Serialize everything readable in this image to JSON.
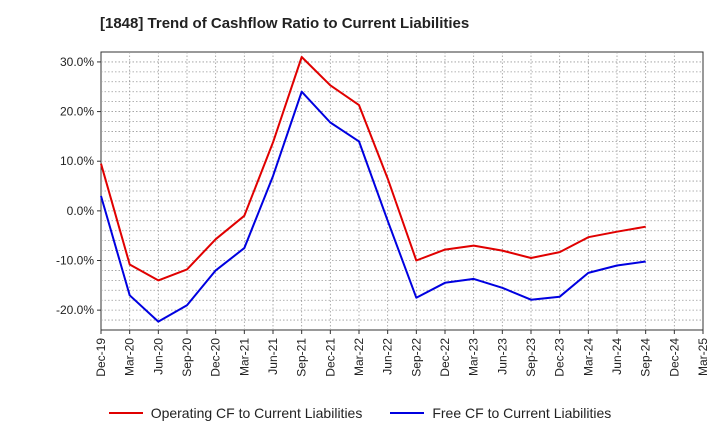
{
  "chart_data": {
    "type": "line",
    "title": "[1848]  Trend of Cashflow Ratio to Current Liabilities",
    "x": [
      "Dec-19",
      "Mar-20",
      "Jun-20",
      "Sep-20",
      "Dec-20",
      "Mar-21",
      "Jun-21",
      "Sep-21",
      "Dec-21",
      "Mar-22",
      "Jun-22",
      "Sep-22",
      "Dec-22",
      "Mar-23",
      "Jun-23",
      "Sep-23",
      "Dec-23",
      "Mar-24",
      "Jun-24",
      "Sep-24",
      "Dec-24",
      "Mar-25"
    ],
    "x_tick_labels": [
      "Dec-19",
      "Mar-20",
      "Jun-20",
      "Sep-20",
      "Dec-20",
      "Mar-21",
      "Jun-21",
      "Sep-21",
      "Dec-21",
      "Mar-22",
      "Jun-22",
      "Sep-22",
      "Dec-22",
      "Mar-23",
      "Jun-23",
      "Sep-23",
      "Dec-23",
      "Mar-24",
      "Jun-24",
      "Sep-24",
      "Dec-24",
      "Mar-25"
    ],
    "y_ticks": [
      30,
      20,
      10,
      0,
      -10,
      -20
    ],
    "y_tick_labels": [
      "30.0%",
      "20.0%",
      "10.0%",
      "0.0%",
      "-10.0%",
      "-20.0%"
    ],
    "ylim": [
      -24,
      32
    ],
    "grid": true,
    "legend_position": "bottom",
    "series": [
      {
        "name": "Operating CF to Current Liabilities",
        "color": "#e00000",
        "values": [
          9.5,
          -10.8,
          -14.0,
          -11.8,
          -5.7,
          -1.0,
          13.8,
          31.0,
          25.3,
          21.3,
          6.5,
          -10.0,
          -7.8,
          -7.0,
          -8.0,
          -9.5,
          -8.3,
          -5.3,
          -4.2,
          -3.2,
          null,
          null
        ]
      },
      {
        "name": "Free CF to Current Liabilities",
        "color": "#0000e0",
        "values": [
          3.0,
          -17.0,
          -22.3,
          -19.0,
          -12.0,
          -7.5,
          7.0,
          24.0,
          17.8,
          14.0,
          -2.0,
          -17.5,
          -14.5,
          -13.7,
          -15.5,
          -17.9,
          -17.3,
          -12.5,
          -11.0,
          -10.2,
          null,
          null
        ]
      }
    ]
  }
}
